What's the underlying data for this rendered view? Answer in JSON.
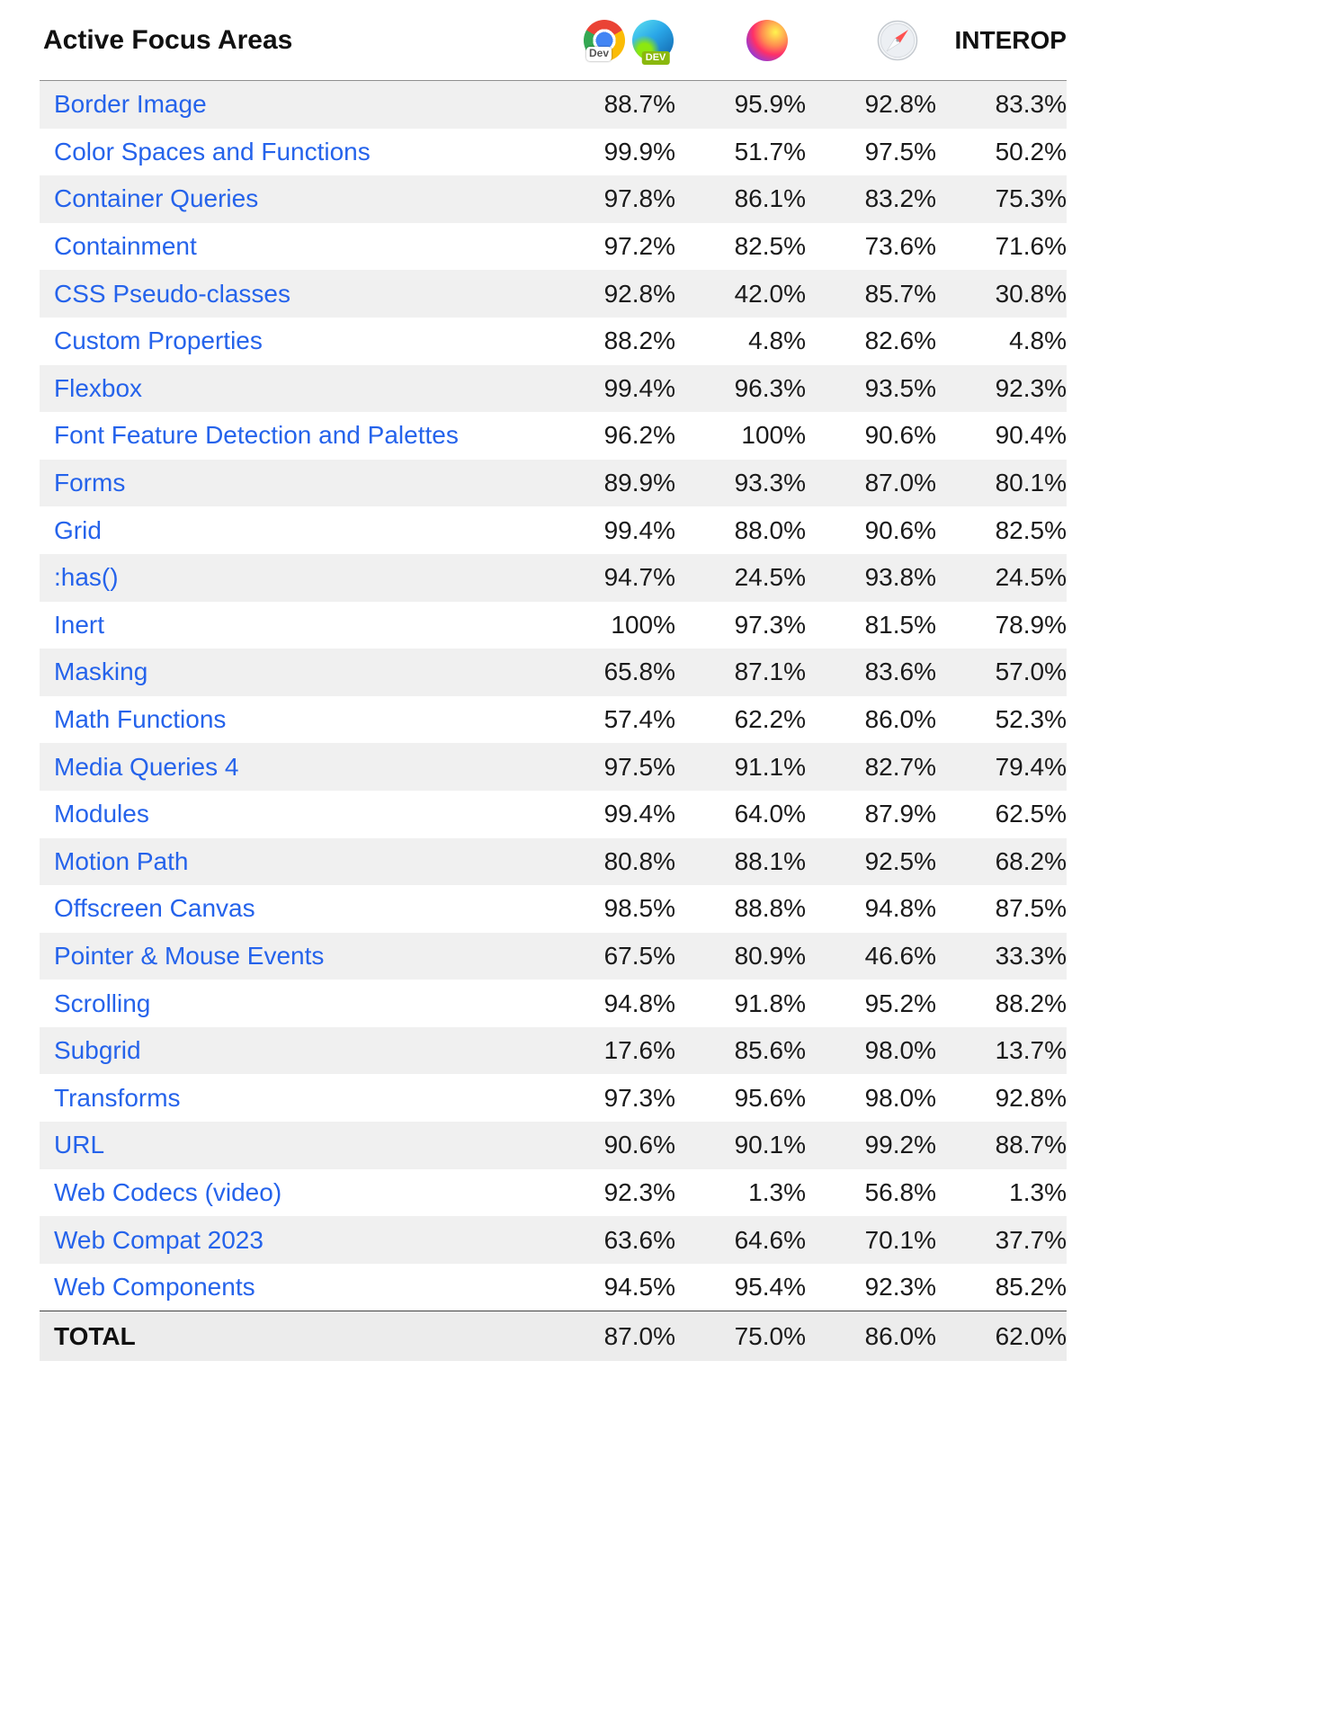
{
  "header": {
    "title": "Active Focus Areas",
    "interop_label": "INTEROP",
    "chrome_badge": "Dev",
    "edge_badge": "DEV",
    "browser_columns": [
      {
        "icons": [
          "chrome-dev-icon",
          "edge-dev-icon"
        ]
      },
      {
        "icons": [
          "firefox-icon"
        ]
      },
      {
        "icons": [
          "safari-icon"
        ]
      }
    ]
  },
  "rows": [
    {
      "label": "Border Image",
      "values": [
        "88.7%",
        "95.9%",
        "92.8%",
        "83.3%"
      ]
    },
    {
      "label": "Color Spaces and Functions",
      "values": [
        "99.9%",
        "51.7%",
        "97.5%",
        "50.2%"
      ]
    },
    {
      "label": "Container Queries",
      "values": [
        "97.8%",
        "86.1%",
        "83.2%",
        "75.3%"
      ]
    },
    {
      "label": "Containment",
      "values": [
        "97.2%",
        "82.5%",
        "73.6%",
        "71.6%"
      ]
    },
    {
      "label": "CSS Pseudo-classes",
      "values": [
        "92.8%",
        "42.0%",
        "85.7%",
        "30.8%"
      ]
    },
    {
      "label": "Custom Properties",
      "values": [
        "88.2%",
        "4.8%",
        "82.6%",
        "4.8%"
      ]
    },
    {
      "label": "Flexbox",
      "values": [
        "99.4%",
        "96.3%",
        "93.5%",
        "92.3%"
      ]
    },
    {
      "label": "Font Feature Detection and Palettes",
      "values": [
        "96.2%",
        "100%",
        "90.6%",
        "90.4%"
      ]
    },
    {
      "label": "Forms",
      "values": [
        "89.9%",
        "93.3%",
        "87.0%",
        "80.1%"
      ]
    },
    {
      "label": "Grid",
      "values": [
        "99.4%",
        "88.0%",
        "90.6%",
        "82.5%"
      ]
    },
    {
      "label": ":has()",
      "values": [
        "94.7%",
        "24.5%",
        "93.8%",
        "24.5%"
      ]
    },
    {
      "label": "Inert",
      "values": [
        "100%",
        "97.3%",
        "81.5%",
        "78.9%"
      ]
    },
    {
      "label": "Masking",
      "values": [
        "65.8%",
        "87.1%",
        "83.6%",
        "57.0%"
      ]
    },
    {
      "label": "Math Functions",
      "values": [
        "57.4%",
        "62.2%",
        "86.0%",
        "52.3%"
      ]
    },
    {
      "label": "Media Queries 4",
      "values": [
        "97.5%",
        "91.1%",
        "82.7%",
        "79.4%"
      ]
    },
    {
      "label": "Modules",
      "values": [
        "99.4%",
        "64.0%",
        "87.9%",
        "62.5%"
      ]
    },
    {
      "label": "Motion Path",
      "values": [
        "80.8%",
        "88.1%",
        "92.5%",
        "68.2%"
      ]
    },
    {
      "label": "Offscreen Canvas",
      "values": [
        "98.5%",
        "88.8%",
        "94.8%",
        "87.5%"
      ]
    },
    {
      "label": "Pointer & Mouse Events",
      "values": [
        "67.5%",
        "80.9%",
        "46.6%",
        "33.3%"
      ]
    },
    {
      "label": "Scrolling",
      "values": [
        "94.8%",
        "91.8%",
        "95.2%",
        "88.2%"
      ]
    },
    {
      "label": "Subgrid",
      "values": [
        "17.6%",
        "85.6%",
        "98.0%",
        "13.7%"
      ]
    },
    {
      "label": "Transforms",
      "values": [
        "97.3%",
        "95.6%",
        "98.0%",
        "92.8%"
      ]
    },
    {
      "label": "URL",
      "values": [
        "90.6%",
        "90.1%",
        "99.2%",
        "88.7%"
      ]
    },
    {
      "label": "Web Codecs (video)",
      "values": [
        "92.3%",
        "1.3%",
        "56.8%",
        "1.3%"
      ]
    },
    {
      "label": "Web Compat 2023",
      "values": [
        "63.6%",
        "64.6%",
        "70.1%",
        "37.7%"
      ]
    },
    {
      "label": "Web Components",
      "values": [
        "94.5%",
        "95.4%",
        "92.3%",
        "85.2%"
      ]
    }
  ],
  "total": {
    "label": "TOTAL",
    "values": [
      "87.0%",
      "75.0%",
      "86.0%",
      "62.0%"
    ]
  },
  "colors": {
    "link": "#2563eb",
    "stripe": "#f0f0f0",
    "total_bg": "#ececec",
    "header_border": "#8f8f8f",
    "total_border": "#444444"
  }
}
